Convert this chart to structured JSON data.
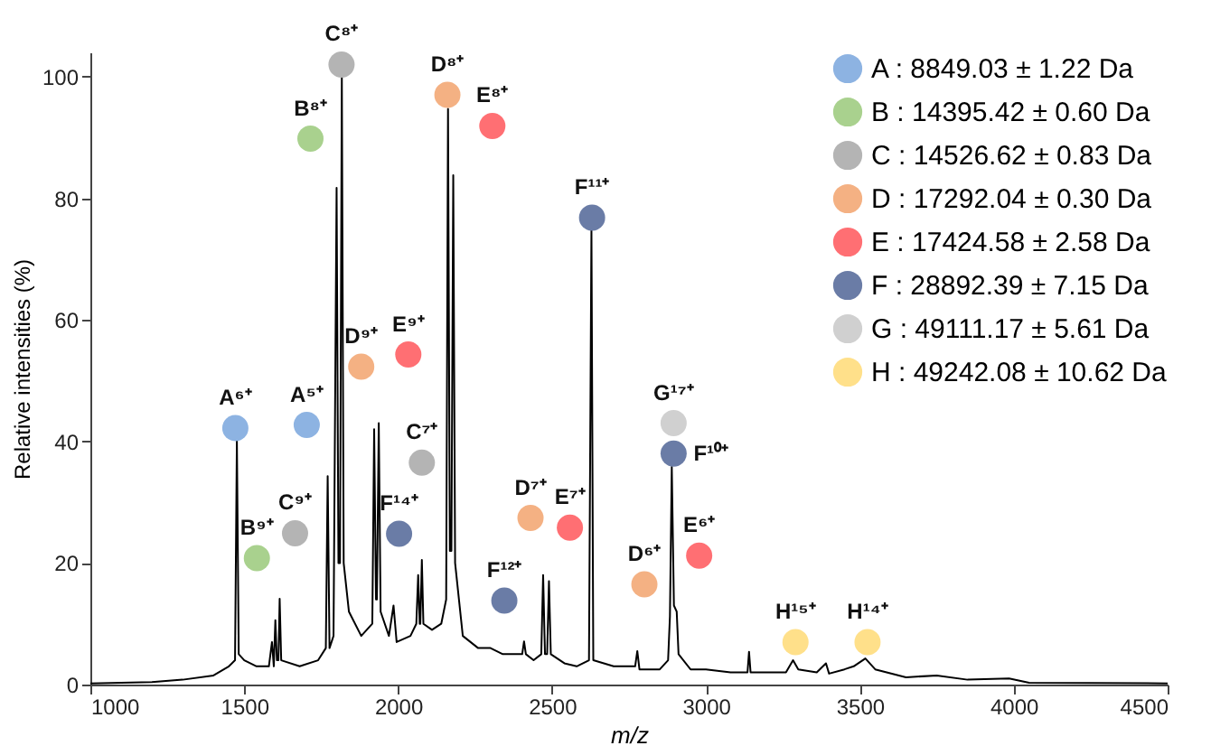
{
  "chart_data": {
    "type": "line",
    "xlabel": "m/z",
    "ylabel": "Relative intensities (%)",
    "xlim": [
      1000,
      4500
    ],
    "xticks": [
      1000,
      1500,
      2000,
      2500,
      3000,
      3500,
      4000,
      4500
    ],
    "ylim": [
      0,
      104
    ],
    "yticks": [
      0,
      20,
      40,
      60,
      80,
      100
    ],
    "grid": false,
    "legend": "top right",
    "series": [
      {
        "color": "#000000",
        "x": [
          1000,
          1200,
          1300,
          1400,
          1450,
          1470,
          1476,
          1482,
          1500,
          1540,
          1580,
          1590,
          1596,
          1601,
          1606,
          1611,
          1615,
          1620,
          1680,
          1740,
          1765,
          1771,
          1777,
          1790,
          1800,
          1806,
          1811,
          1817,
          1823,
          1840,
          1880,
          1916,
          1922,
          1928,
          1931,
          1937,
          1943,
          1970,
          1985,
          1995,
          2040,
          2059,
          2065,
          2070,
          2072,
          2077,
          2082,
          2110,
          2140,
          2156,
          2162,
          2168,
          2173,
          2179,
          2185,
          2210,
          2260,
          2300,
          2340,
          2380,
          2403,
          2409,
          2415,
          2440,
          2465,
          2471,
          2477,
          2484,
          2490,
          2496,
          2540,
          2580,
          2620,
          2628,
          2634,
          2700,
          2770,
          2777,
          2784,
          2850,
          2877,
          2883,
          2889,
          2896,
          2905,
          2911,
          2950,
          3000,
          3080,
          3135,
          3140,
          3145,
          3200,
          3260,
          3283,
          3300,
          3360,
          3390,
          3400,
          3450,
          3480,
          3518,
          3550,
          3650,
          3750,
          3850,
          3985,
          4050,
          4500
        ],
        "values": [
          0.2,
          0.4,
          0.8,
          1.5,
          3,
          4,
          40.2,
          5,
          4,
          3,
          3,
          7,
          3,
          10.6,
          4,
          4,
          14.1,
          4,
          3,
          4,
          6,
          34.3,
          6,
          8,
          81.7,
          20,
          20,
          100,
          20,
          12,
          8,
          10,
          42,
          14,
          14,
          43,
          12,
          8,
          13,
          7,
          8,
          10,
          18,
          10,
          10,
          20.5,
          10,
          9,
          10,
          14,
          94.7,
          22,
          22,
          83.8,
          20,
          8,
          6,
          6,
          5,
          5,
          5,
          7.1,
          5,
          4,
          5,
          18,
          5,
          5,
          17,
          5,
          3.5,
          3,
          4,
          74.8,
          4,
          3,
          3,
          5.5,
          2.5,
          2.5,
          4,
          11.2,
          35.8,
          13,
          12,
          5,
          2.5,
          2.5,
          2,
          2,
          5.4,
          2,
          2,
          2,
          4,
          2.5,
          2,
          3.5,
          1.8,
          2.5,
          3,
          4.3,
          2.5,
          1.2,
          1.5,
          0.8,
          1,
          0.3,
          0.2
        ]
      },
      {
        "type": "scatter",
        "marker": "circle",
        "name": "A : 8849.03 ± 1.22 Da",
        "color": "#8db3e2",
        "x": [
          1471,
          1703
        ],
        "values": [
          42.2,
          42.7
        ]
      },
      {
        "type": "scatter",
        "marker": "circle",
        "name": "B : 14395.42 ± 0.60 Da",
        "color": "#a9d18e",
        "x": [
          1715,
          1541
        ],
        "values": [
          89.8,
          20.8
        ]
      },
      {
        "type": "scatter",
        "marker": "circle",
        "name": "C : 14526.62 ± 0.83 Da",
        "color": "#b4b4b4",
        "x": [
          1816,
          1665,
          2077
        ],
        "values": [
          102,
          24.9,
          36.5
        ]
      },
      {
        "type": "scatter",
        "marker": "circle",
        "name": "D : 17292.04 ± 0.30 Da",
        "color": "#f4b183",
        "x": [
          2160,
          1880,
          2430,
          2800
        ],
        "values": [
          97,
          52.3,
          27.4,
          16.5
        ]
      },
      {
        "type": "scatter",
        "marker": "circle",
        "name": "E : 17424.58 ± 2.58 Da",
        "color": "#ff6f73",
        "x": [
          2306,
          2033,
          2558,
          2978
        ],
        "values": [
          91.9,
          54.3,
          25.8,
          21.2
        ]
      },
      {
        "type": "scatter",
        "marker": "circle",
        "name": "F : 28892.39 ± 7.15 Da",
        "color": "#6a7ca6",
        "x": [
          2630,
          2003,
          2345,
          2895
        ],
        "values": [
          76.8,
          24.8,
          13.8,
          38
        ]
      },
      {
        "type": "scatter",
        "marker": "circle",
        "name": "G : 49111.17 ± 5.61 Da",
        "color": "#d0d0d0",
        "x": [
          2895
        ],
        "values": [
          43
        ]
      },
      {
        "type": "scatter",
        "marker": "circle",
        "name": "H : 49242.08 ± 10.62 Da",
        "color": "#ffe08a",
        "x": [
          3291,
          3525
        ],
        "values": [
          7,
          7
        ]
      }
    ],
    "annotations": [
      {
        "text": "A⁶⁺",
        "x": 1471,
        "y": 42.2
      },
      {
        "text": "A⁵⁺",
        "x": 1703,
        "y": 42.7
      },
      {
        "text": "B⁹⁺",
        "x": 1541,
        "y": 20.8
      },
      {
        "text": "C⁹⁺",
        "x": 1665,
        "y": 24.9
      },
      {
        "text": "B⁸⁺",
        "x": 1715,
        "y": 89.8
      },
      {
        "text": "C⁸⁺",
        "x": 1816,
        "y": 102
      },
      {
        "text": "C⁷⁺",
        "x": 2077,
        "y": 36.5
      },
      {
        "text": "D⁹⁺",
        "x": 1880,
        "y": 52.3
      },
      {
        "text": "D⁸⁺",
        "x": 2160,
        "y": 97
      },
      {
        "text": "D⁷⁺",
        "x": 2430,
        "y": 27.4
      },
      {
        "text": "D⁶⁺",
        "x": 2800,
        "y": 16.5
      },
      {
        "text": "E⁹⁺",
        "x": 2033,
        "y": 54.3
      },
      {
        "text": "E⁸⁺",
        "x": 2306,
        "y": 91.9
      },
      {
        "text": "E⁷⁺",
        "x": 2558,
        "y": 25.8
      },
      {
        "text": "E⁶⁺",
        "x": 2978,
        "y": 21.2
      },
      {
        "text": "F¹¹⁺",
        "x": 2630,
        "y": 76.8
      },
      {
        "text": "F¹⁴⁺",
        "x": 2003,
        "y": 24.8
      },
      {
        "text": "F¹²⁺",
        "x": 2345,
        "y": 13.8
      },
      {
        "text": "F¹⁰⁺",
        "x": 2895,
        "y": 38
      },
      {
        "text": "G¹⁷⁺",
        "x": 2895,
        "y": 43
      },
      {
        "text": "H¹⁵⁺",
        "x": 3291,
        "y": 7
      },
      {
        "text": "H¹⁴⁺",
        "x": 3525,
        "y": 7
      }
    ]
  }
}
